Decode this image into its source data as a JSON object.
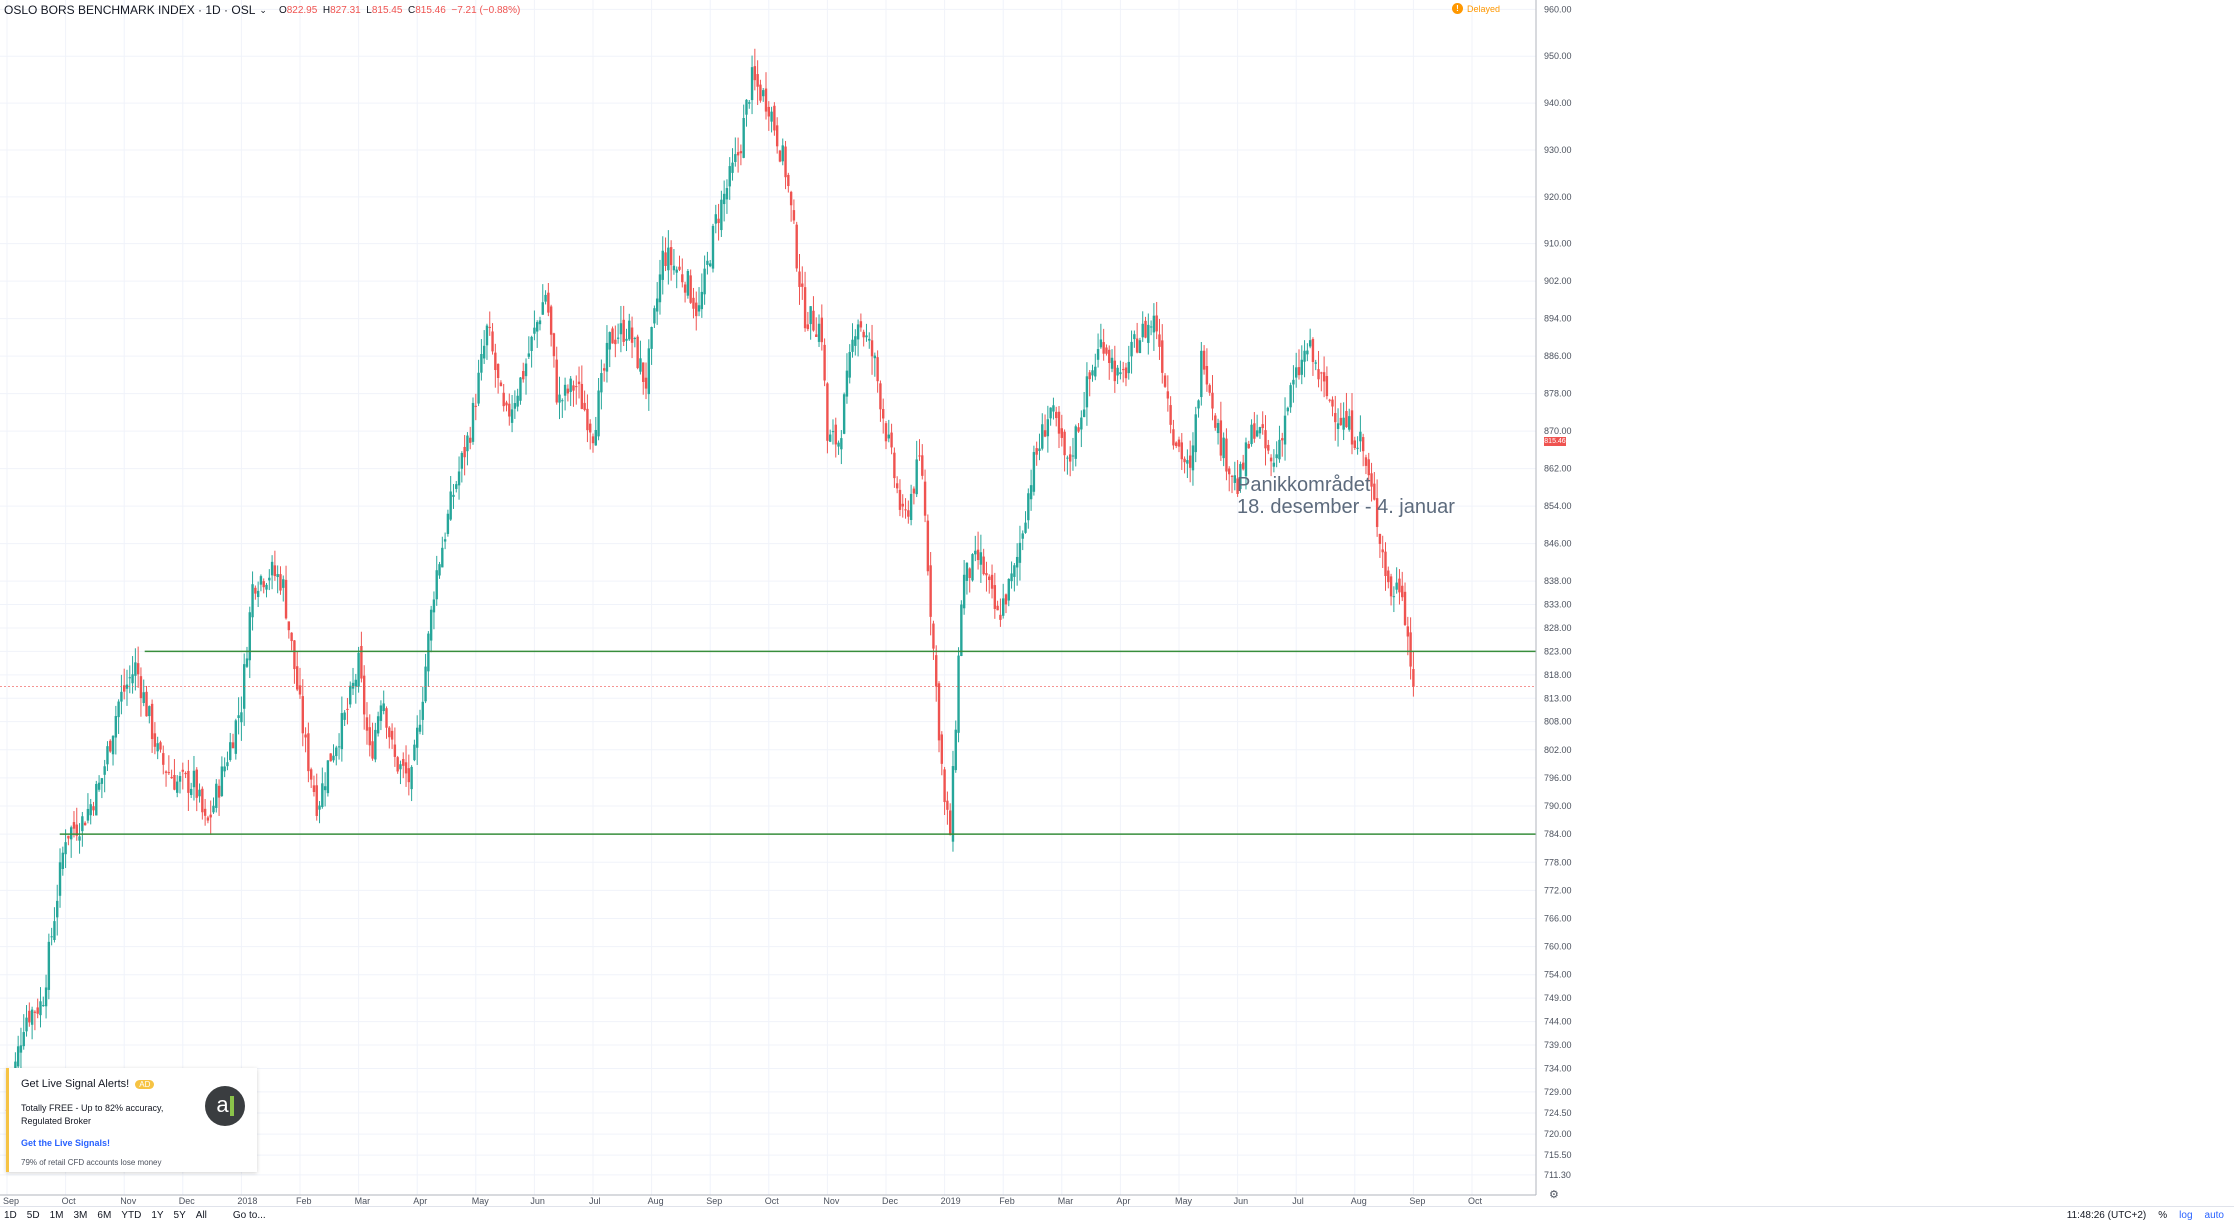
{
  "header": {
    "symbol": "OSLO BORS BENCHMARK INDEX · 1D · OSL",
    "o_label": "O",
    "o_val": "822.95",
    "h_label": "H",
    "h_val": "827.31",
    "l_label": "L",
    "l_val": "815.45",
    "c_label": "C",
    "c_val": "815.46",
    "change": "−7.21 (−0.88%)"
  },
  "delayed": {
    "icon": "!",
    "label": "Delayed"
  },
  "annotation": {
    "line1": "Panikkområdet",
    "line2": "18. desember - 4. januar"
  },
  "price_tag": "815.46",
  "ad": {
    "title": "Get Live Signal Alerts!",
    "badge": "AD",
    "body": "Totally FREE - Up to 82% accuracy, Regulated Broker",
    "link": "Get the Live Signals!",
    "disclaimer": "79% of retail CFD accounts lose money",
    "logo": "a"
  },
  "bottom_bar": {
    "ranges": [
      "1D",
      "5D",
      "1M",
      "3M",
      "6M",
      "YTD",
      "1Y",
      "5Y",
      "All"
    ],
    "goto": "Go to...",
    "time": "11:48:26 (UTC+2)",
    "pct": "%",
    "log": "log",
    "auto": "auto"
  },
  "colors": {
    "up": "#26a69a",
    "down": "#ef5350",
    "level": "#388e3c",
    "last": "#ef5350"
  },
  "chart_data": {
    "type": "candlestick",
    "title": "OSLO BORS BENCHMARK INDEX · 1D · OSL",
    "y_ticks": [
      960,
      950,
      940,
      930,
      920,
      910,
      902,
      894,
      886,
      878,
      870,
      862,
      854,
      846,
      838,
      833,
      828,
      823,
      818,
      813,
      808,
      802,
      796,
      790,
      784,
      778,
      772,
      766,
      760,
      754,
      749,
      744,
      739,
      734,
      729,
      724.5,
      720,
      715.5,
      711.3
    ],
    "y_tick_labels": [
      "960.00",
      "950.00",
      "940.00",
      "930.00",
      "920.00",
      "910.00",
      "902.00",
      "894.00",
      "886.00",
      "878.00",
      "870.00",
      "862.00",
      "854.00",
      "846.00",
      "838.00",
      "833.00",
      "828.00",
      "823.00",
      "818.00",
      "813.00",
      "808.00",
      "802.00",
      "796.00",
      "790.00",
      "784.00",
      "778.00",
      "772.00",
      "766.00",
      "760.00",
      "754.00",
      "749.00",
      "744.00",
      "739.00",
      "734.00",
      "729.00",
      "724.50",
      "720.00",
      "715.50",
      "711.30"
    ],
    "x_ticks": [
      {
        "label": "Sep",
        "month": 0
      },
      {
        "label": "Oct",
        "month": 1
      },
      {
        "label": "Nov",
        "month": 2
      },
      {
        "label": "Dec",
        "month": 3
      },
      {
        "label": "2018",
        "month": 4
      },
      {
        "label": "Feb",
        "month": 5
      },
      {
        "label": "Mar",
        "month": 6
      },
      {
        "label": "Apr",
        "month": 7
      },
      {
        "label": "May",
        "month": 8
      },
      {
        "label": "Jun",
        "month": 9
      },
      {
        "label": "Jul",
        "month": 10
      },
      {
        "label": "Aug",
        "month": 11
      },
      {
        "label": "Sep",
        "month": 12
      },
      {
        "label": "Oct",
        "month": 13
      },
      {
        "label": "Nov",
        "month": 14
      },
      {
        "label": "Dec",
        "month": 15
      },
      {
        "label": "2019",
        "month": 16
      },
      {
        "label": "Feb",
        "month": 17
      },
      {
        "label": "Mar",
        "month": 18
      },
      {
        "label": "Apr",
        "month": 19
      },
      {
        "label": "May",
        "month": 20
      },
      {
        "label": "Jun",
        "month": 21
      },
      {
        "label": "Jul",
        "month": 22
      },
      {
        "label": "Aug",
        "month": 23
      },
      {
        "label": "Sep",
        "month": 24
      },
      {
        "label": "Oct",
        "month": 25
      }
    ],
    "x_unit": "months since Sep 2017",
    "close_path": [
      [
        0,
        725
      ],
      [
        0.3,
        745
      ],
      [
        0.6,
        748
      ],
      [
        1.0,
        784
      ],
      [
        1.3,
        787
      ],
      [
        1.6,
        795
      ],
      [
        1.9,
        812
      ],
      [
        2.2,
        820
      ],
      [
        2.4,
        810
      ],
      [
        2.6,
        800
      ],
      [
        2.9,
        795
      ],
      [
        3.2,
        795
      ],
      [
        3.4,
        785
      ],
      [
        3.7,
        798
      ],
      [
        4.0,
        812
      ],
      [
        4.2,
        838
      ],
      [
        4.5,
        840
      ],
      [
        4.7,
        838
      ],
      [
        4.9,
        820
      ],
      [
        5.1,
        802
      ],
      [
        5.3,
        790
      ],
      [
        5.5,
        800
      ],
      [
        5.8,
        810
      ],
      [
        6.0,
        820
      ],
      [
        6.2,
        800
      ],
      [
        6.4,
        815
      ],
      [
        6.6,
        800
      ],
      [
        6.9,
        795
      ],
      [
        7.1,
        815
      ],
      [
        7.3,
        838
      ],
      [
        7.6,
        856
      ],
      [
        7.9,
        870
      ],
      [
        8.2,
        892
      ],
      [
        8.5,
        872
      ],
      [
        8.8,
        882
      ],
      [
        9.2,
        900
      ],
      [
        9.4,
        876
      ],
      [
        9.7,
        880
      ],
      [
        10.0,
        870
      ],
      [
        10.3,
        890
      ],
      [
        10.6,
        892
      ],
      [
        10.9,
        880
      ],
      [
        11.2,
        908
      ],
      [
        11.6,
        902
      ],
      [
        11.8,
        895
      ],
      [
        12.1,
        915
      ],
      [
        12.5,
        930
      ],
      [
        12.7,
        945
      ],
      [
        13.0,
        940
      ],
      [
        13.3,
        925
      ],
      [
        13.6,
        895
      ],
      [
        13.9,
        892
      ],
      [
        14.0,
        868
      ],
      [
        14.2,
        868
      ],
      [
        14.5,
        895
      ],
      [
        14.8,
        885
      ],
      [
        15.0,
        870
      ],
      [
        15.3,
        850
      ],
      [
        15.6,
        865
      ],
      [
        15.8,
        825
      ],
      [
        16.0,
        790
      ],
      [
        16.1,
        784
      ],
      [
        16.3,
        838
      ],
      [
        16.6,
        843
      ],
      [
        16.9,
        830
      ],
      [
        17.2,
        840
      ],
      [
        17.5,
        862
      ],
      [
        17.8,
        875
      ],
      [
        18.1,
        862
      ],
      [
        18.4,
        878
      ],
      [
        18.7,
        890
      ],
      [
        19.0,
        880
      ],
      [
        19.3,
        890
      ],
      [
        19.6,
        894
      ],
      [
        19.9,
        870
      ],
      [
        20.2,
        860
      ],
      [
        20.4,
        888
      ],
      [
        20.7,
        868
      ],
      [
        21.0,
        858
      ],
      [
        21.3,
        872
      ],
      [
        21.6,
        862
      ],
      [
        21.9,
        878
      ],
      [
        22.2,
        888
      ],
      [
        22.5,
        878
      ],
      [
        22.8,
        872
      ],
      [
        23.1,
        868
      ],
      [
        23.4,
        850
      ],
      [
        23.6,
        835
      ],
      [
        23.8,
        838
      ],
      [
        24.0,
        815.46
      ]
    ],
    "horizontal_levels": [
      823,
      784
    ],
    "last_price": 815.46,
    "ylim": [
      707,
      962
    ]
  }
}
